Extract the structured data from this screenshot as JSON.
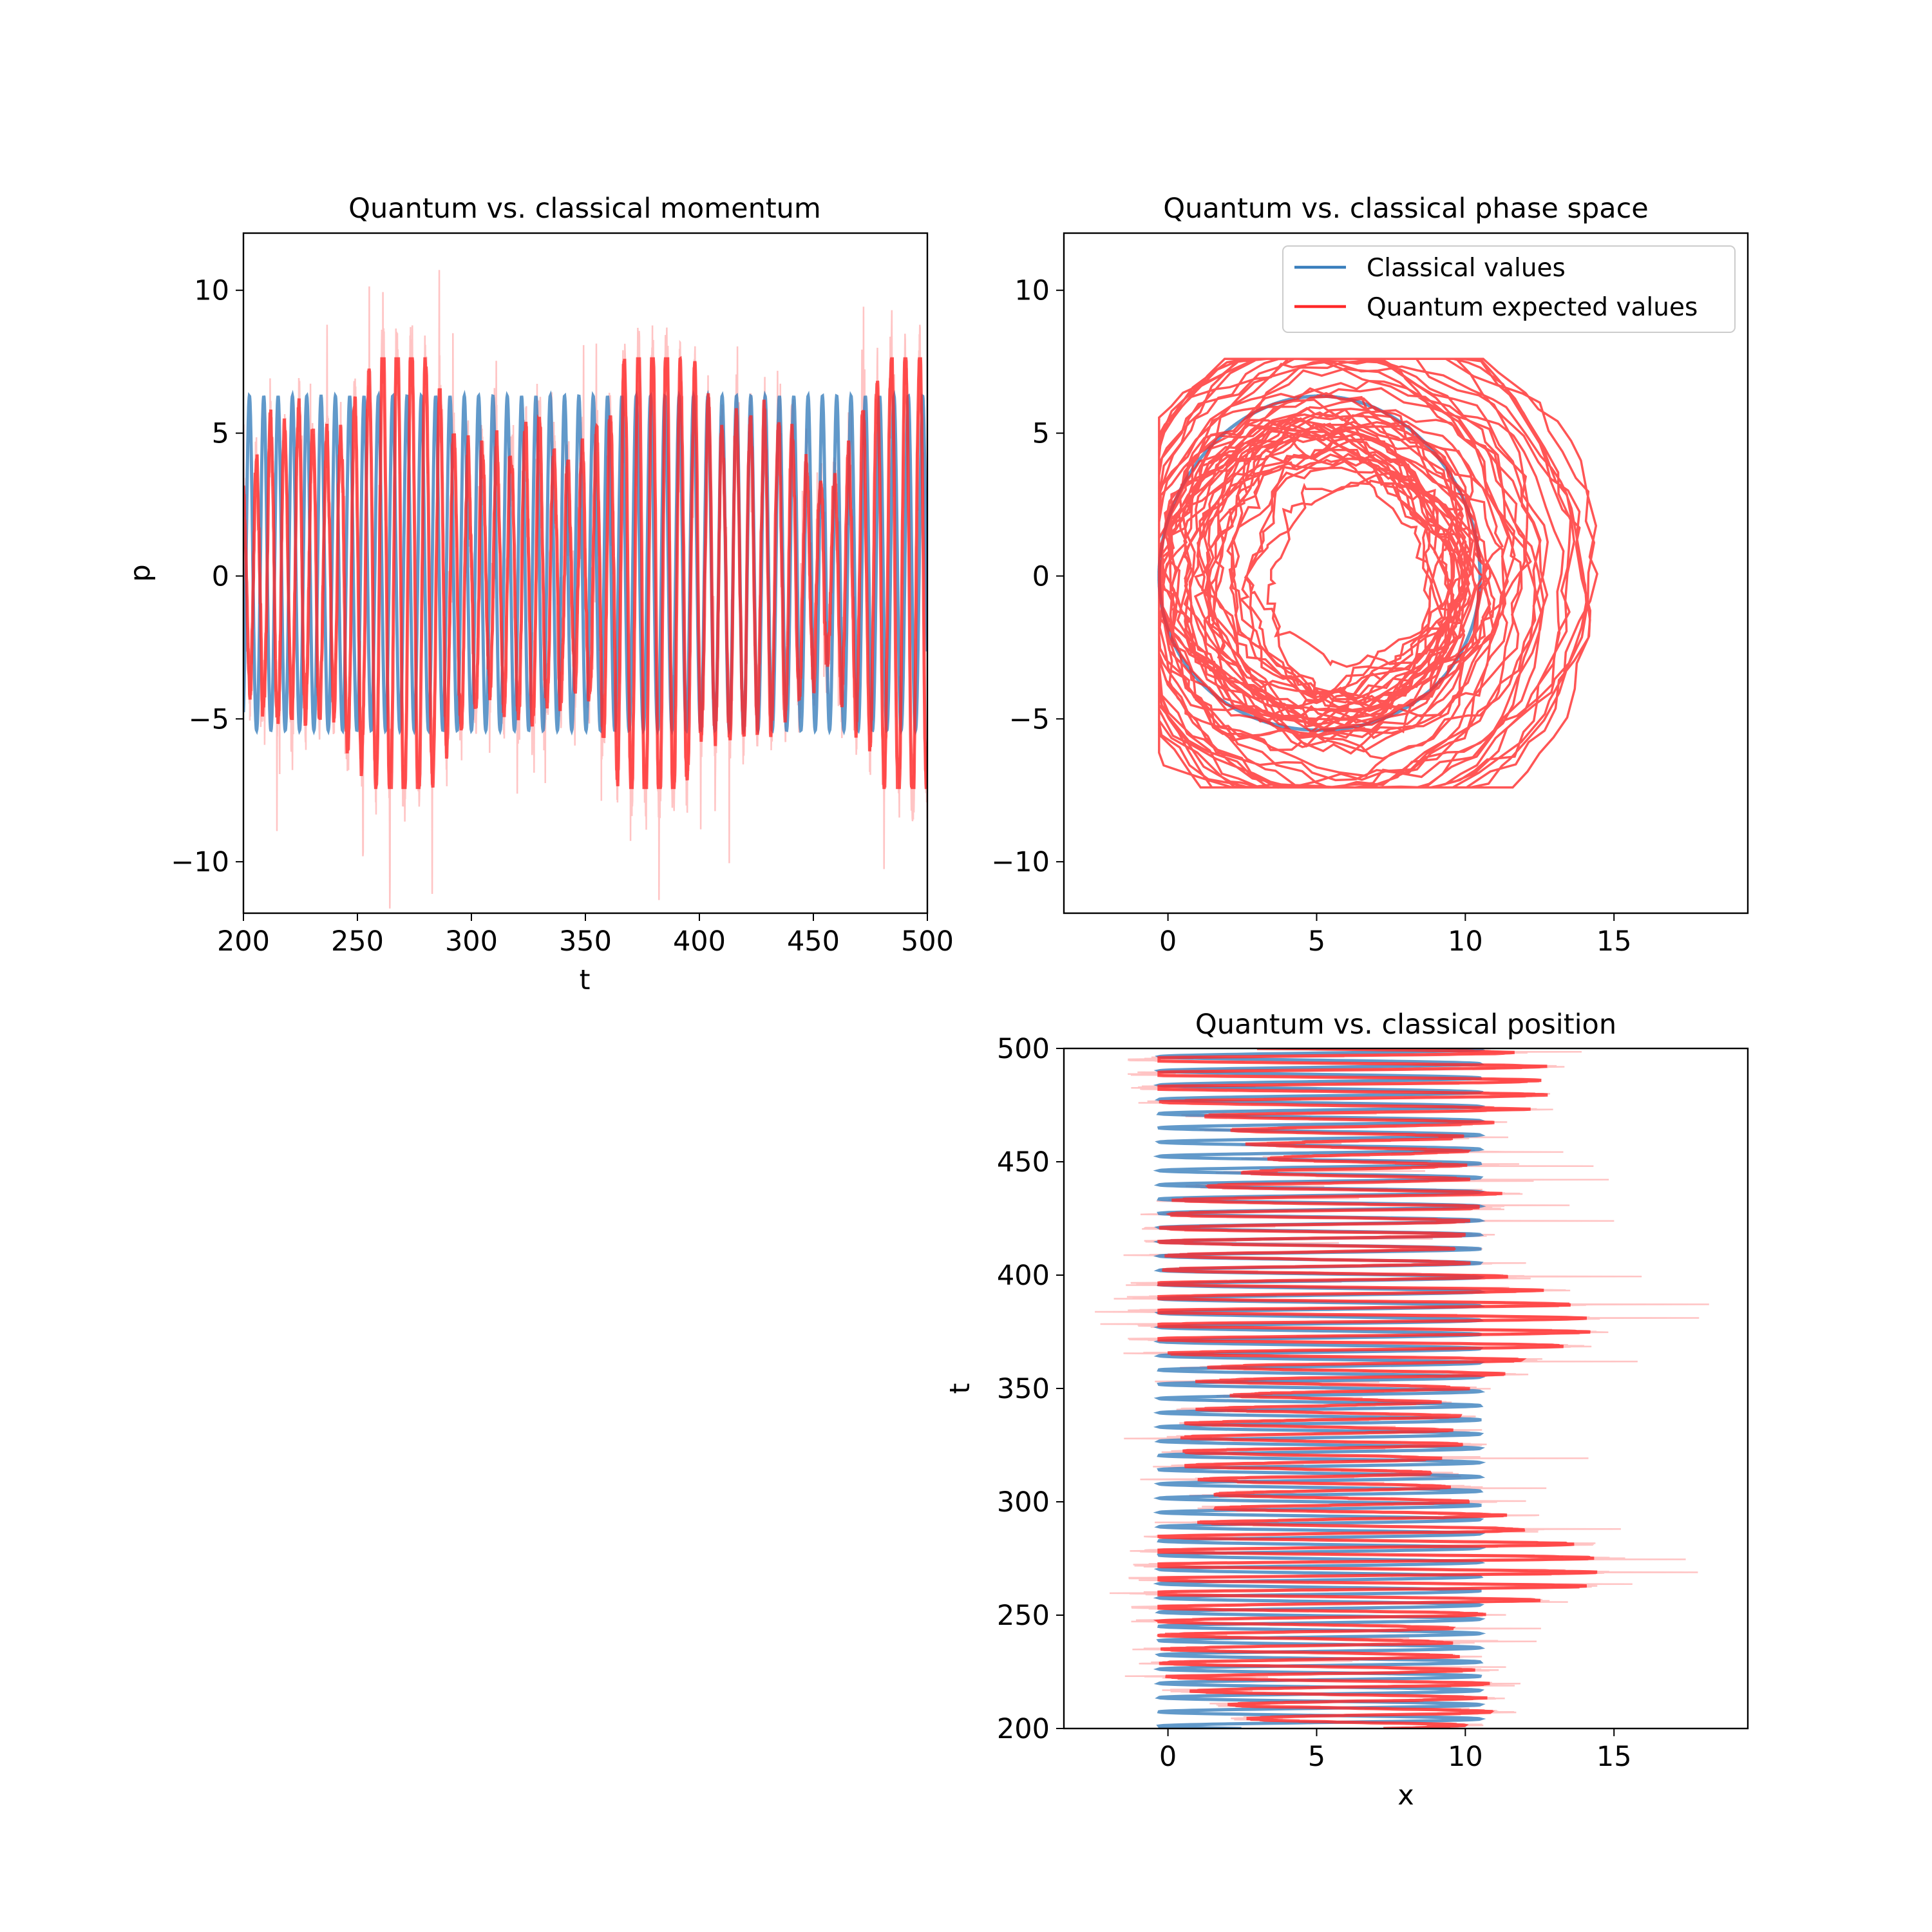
{
  "chart_data": [
    {
      "type": "line",
      "title": "Quantum vs. classical momentum",
      "xlabel": "t",
      "ylabel": "p",
      "xlim": [
        200,
        500
      ],
      "ylim": [
        -11.8,
        12
      ],
      "xticks": [
        200,
        250,
        300,
        350,
        400,
        450,
        500
      ],
      "yticks": [
        -10,
        -5,
        0,
        5,
        10
      ],
      "xtick_labels": [
        "200",
        "250",
        "300",
        "350",
        "400",
        "450",
        "500"
      ],
      "ytick_labels": [
        "−10",
        "−5",
        "0",
        "5",
        "10"
      ],
      "legend": "none",
      "grid": false,
      "series": [
        {
          "name": "Classical values",
          "color": "#3a7fbd",
          "description": "periodic momentum oscillation, period ~6.3, amplitude about -5.4 to 6.3"
        },
        {
          "name": "Quantum expected values",
          "color": "#ff2a2a",
          "description": "irregular oscillation mostly between about -7.5 and 7.5, with a faint band of extremes reaching about -11.5 to 12"
        }
      ]
    },
    {
      "type": "line",
      "title": "Quantum vs. classical phase space",
      "xlabel": "",
      "ylabel": "",
      "xlim": [
        -3.5,
        19.5
      ],
      "ylim": [
        -11.8,
        12
      ],
      "xticks": [
        0,
        5,
        10,
        15
      ],
      "yticks": [
        -10,
        -5,
        0,
        5,
        10
      ],
      "xtick_labels": [
        "0",
        "5",
        "10",
        "15"
      ],
      "ytick_labels": [
        "−10",
        "−5",
        "0",
        "5",
        "10"
      ],
      "legend": "upper right",
      "legend_entries": [
        "Classical values",
        "Quantum expected values"
      ],
      "grid": false,
      "series": [
        {
          "name": "Classical values",
          "color": "#3a7fbd",
          "description": "closed orbit in (x, p) spanning x from about -0.3 to 10.5 and p from about -5.4 to 6.3"
        },
        {
          "name": "Quantum expected values",
          "color": "#ff2a2a",
          "description": "dense tangle of loops spanning x from about -0.3 to 15.3 and p from about -7.4 to 7.4"
        }
      ]
    },
    {
      "type": "line",
      "title": "Quantum vs. classical position",
      "xlabel": "x",
      "ylabel": "t",
      "xlim": [
        -3.5,
        19.5
      ],
      "ylim": [
        200,
        500
      ],
      "xticks": [
        0,
        5,
        10,
        15
      ],
      "yticks": [
        200,
        250,
        300,
        350,
        400,
        450,
        500
      ],
      "xtick_labels": [
        "0",
        "5",
        "10",
        "15"
      ],
      "ytick_labels": [
        "200",
        "250",
        "300",
        "350",
        "400",
        "450",
        "500"
      ],
      "legend": "none",
      "grid": false,
      "series": [
        {
          "name": "Classical values",
          "color": "#3a7fbd",
          "description": "position oscillation between about -0.3 and 10.5 plotted against t, period ~6.3"
        },
        {
          "name": "Quantum expected values",
          "color": "#ff2a2a",
          "description": "irregular position oscillation between about 0 and 15.3 against t, faint extremes from about -3.2 to 19.5"
        }
      ]
    }
  ]
}
